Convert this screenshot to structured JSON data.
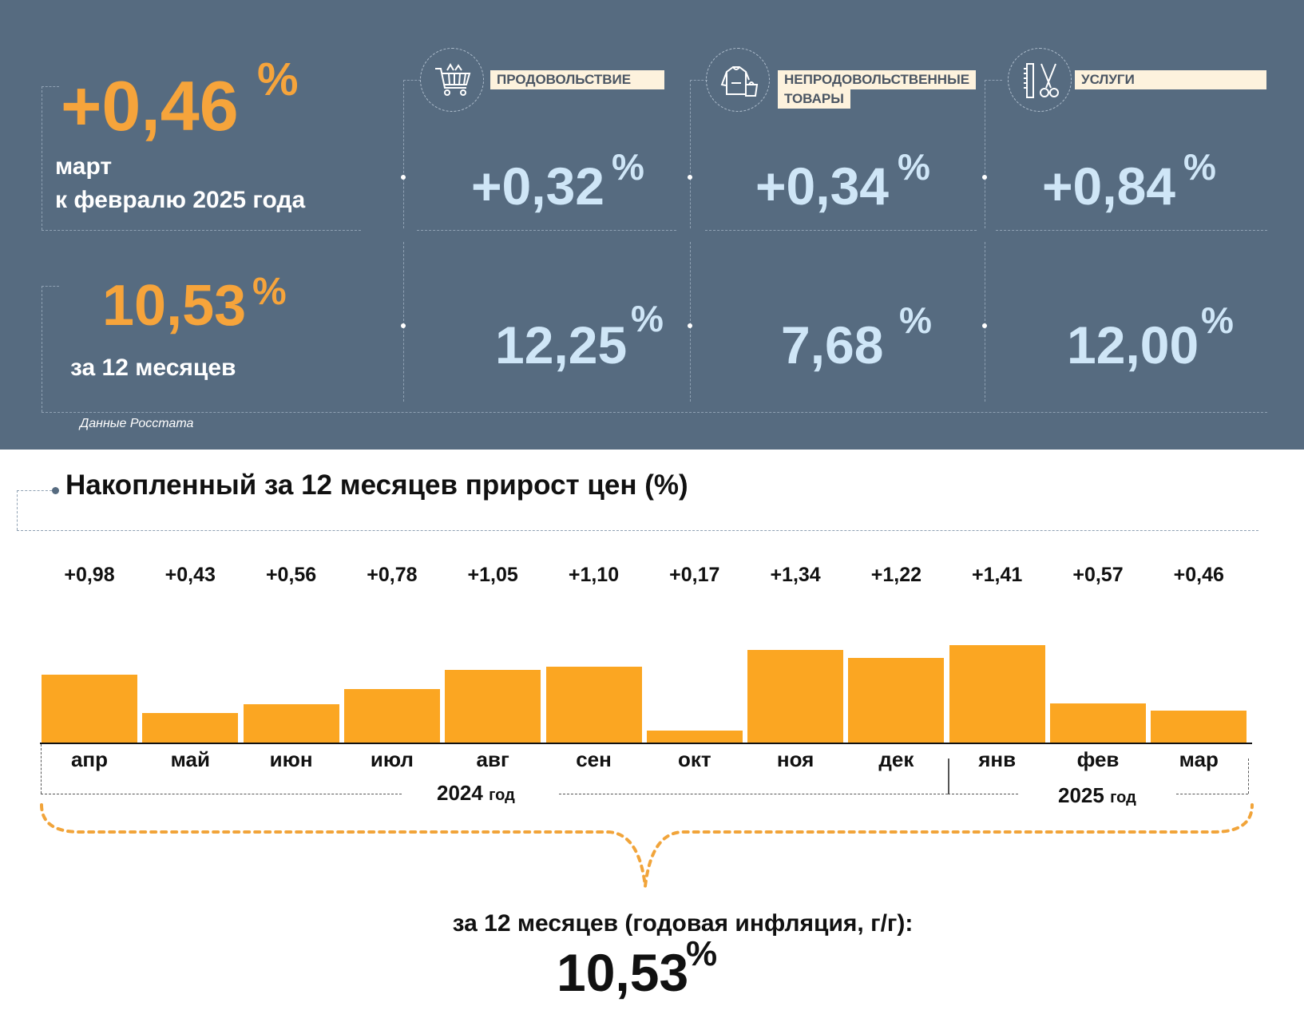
{
  "headline": {
    "monthly_value": "+0,46",
    "monthly_unit": "%",
    "monthly_caption_line1": "март",
    "monthly_caption_line2": "к февралю  2025 года",
    "annual_value": "10,53",
    "annual_unit": "%",
    "annual_caption": "за 12 месяцев"
  },
  "categories": [
    {
      "label_line1": "ПРОДОВОЛЬСТВИЕ",
      "label_line2": "",
      "icon": "shopping-cart-icon",
      "monthly": "+0,32",
      "annual": "12,25",
      "unit": "%"
    },
    {
      "label_line1": "НЕПРОДОВОЛЬСТВЕННЫЕ",
      "label_line2": "ТОВАРЫ",
      "icon": "clothing-bag-icon",
      "monthly": "+0,34",
      "annual": "7,68",
      "unit": "%"
    },
    {
      "label_line1": "УСЛУГИ",
      "label_line2": "",
      "icon": "comb-scissors-icon",
      "monthly": "+0,84",
      "annual": "12,00",
      "unit": "%"
    }
  ],
  "source": "Данные Росстата",
  "chart_title": "Накопленный за 12 месяцев прирост цен (%)",
  "chart_data": {
    "type": "bar",
    "title": "Накопленный за 12 месяцев прирост цен (%)",
    "categories": [
      "апр",
      "май",
      "июн",
      "июл",
      "авг",
      "сен",
      "окт",
      "ноя",
      "дек",
      "янв",
      "фев",
      "мар"
    ],
    "values": [
      0.98,
      0.43,
      0.56,
      0.78,
      1.05,
      1.1,
      0.17,
      1.34,
      1.22,
      1.41,
      0.57,
      0.46
    ],
    "value_labels": [
      "+0,98",
      "+0,43",
      "+0,56",
      "+0,78",
      "+1,05",
      "+1,10",
      "+0,17",
      "+1,34",
      "+1,22",
      "+1,41",
      "+0,57",
      "+0,46"
    ],
    "year_groups": [
      {
        "year": "2024",
        "suffix": "год"
      },
      {
        "year": "2025",
        "suffix": "год"
      }
    ],
    "bar_color": "#fba622",
    "ylim": [
      0,
      1.41
    ]
  },
  "summary": {
    "caption": "за 12 месяцев (годовая инфляция, г/г):",
    "value": "10,53",
    "unit": "%"
  },
  "colors": {
    "panel_bg": "#566b80",
    "accent_orange": "#f6a43b",
    "light_blue": "#cfe6f7",
    "label_bg": "#fdf2dd"
  }
}
